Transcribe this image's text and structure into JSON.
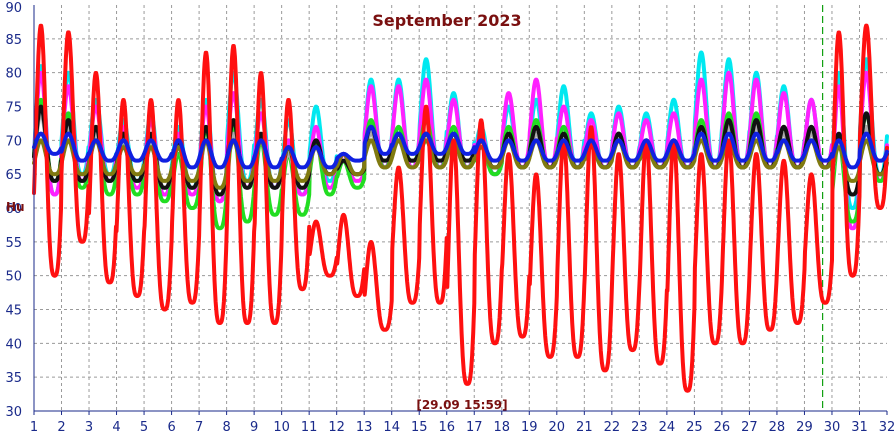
{
  "chart_data": {
    "type": "line",
    "title": "September 2023",
    "ylabel": "Hu",
    "annotation": "[29.09 15:59]",
    "marker_day": 29.66,
    "xlim": [
      1,
      32
    ],
    "ylim": [
      30,
      90
    ],
    "x_ticks": [
      "1",
      "2",
      "3",
      "4",
      "5",
      "6",
      "7",
      "8",
      "9",
      "10",
      "11",
      "12",
      "13",
      "14",
      "15",
      "16",
      "17",
      "18",
      "19",
      "20",
      "21",
      "22",
      "23",
      "24",
      "25",
      "26",
      "27",
      "28",
      "29",
      "30",
      "31",
      "32"
    ],
    "y_ticks": [
      "30",
      "35",
      "40",
      "45",
      "50",
      "55",
      "60",
      "65",
      "70",
      "75",
      "80",
      "85",
      "90"
    ],
    "grid": true,
    "series": [
      {
        "color": "#00e8f0",
        "daily": [
          [
            62,
            81
          ],
          [
            65,
            80
          ],
          [
            65,
            76
          ],
          [
            64,
            73
          ],
          [
            62,
            74
          ],
          [
            63,
            72
          ],
          [
            61,
            76
          ],
          [
            64,
            80
          ],
          [
            63,
            76
          ],
          [
            62,
            73
          ],
          [
            64,
            75
          ],
          [
            65,
            68
          ],
          [
            66,
            79
          ],
          [
            66,
            79
          ],
          [
            66,
            82
          ],
          [
            66,
            77
          ],
          [
            65,
            72
          ],
          [
            66,
            75
          ],
          [
            66,
            76
          ],
          [
            66,
            78
          ],
          [
            66,
            74
          ],
          [
            66,
            75
          ],
          [
            66,
            74
          ],
          [
            66,
            76
          ],
          [
            66,
            83
          ],
          [
            66,
            82
          ],
          [
            66,
            80
          ],
          [
            66,
            78
          ],
          [
            66,
            76
          ],
          [
            60,
            80
          ],
          [
            65,
            82
          ]
        ]
      },
      {
        "color": "#ff20ff",
        "daily": [
          [
            62,
            80
          ],
          [
            64,
            78
          ],
          [
            64,
            75
          ],
          [
            63,
            72
          ],
          [
            62,
            73
          ],
          [
            62,
            71
          ],
          [
            61,
            75
          ],
          [
            63,
            77
          ],
          [
            63,
            74
          ],
          [
            62,
            70
          ],
          [
            63,
            72
          ],
          [
            64,
            68
          ],
          [
            66,
            78
          ],
          [
            66,
            78
          ],
          [
            66,
            79
          ],
          [
            66,
            76
          ],
          [
            65,
            71
          ],
          [
            66,
            77
          ],
          [
            66,
            79
          ],
          [
            66,
            75
          ],
          [
            66,
            73
          ],
          [
            66,
            74
          ],
          [
            66,
            73
          ],
          [
            66,
            74
          ],
          [
            66,
            79
          ],
          [
            66,
            80
          ],
          [
            66,
            79
          ],
          [
            66,
            77
          ],
          [
            66,
            76
          ],
          [
            57,
            78
          ],
          [
            64,
            80
          ]
        ]
      },
      {
        "color": "#22dd22",
        "daily": [
          [
            64,
            76
          ],
          [
            63,
            74
          ],
          [
            62,
            72
          ],
          [
            62,
            70
          ],
          [
            61,
            70
          ],
          [
            60,
            68
          ],
          [
            57,
            72
          ],
          [
            58,
            72
          ],
          [
            59,
            70
          ],
          [
            59,
            68
          ],
          [
            62,
            70
          ],
          [
            63,
            67
          ],
          [
            66,
            73
          ],
          [
            67,
            72
          ],
          [
            66,
            73
          ],
          [
            66,
            72
          ],
          [
            65,
            70
          ],
          [
            66,
            72
          ],
          [
            66,
            73
          ],
          [
            66,
            72
          ],
          [
            66,
            70
          ],
          [
            66,
            71
          ],
          [
            66,
            70
          ],
          [
            66,
            70
          ],
          [
            66,
            73
          ],
          [
            66,
            74
          ],
          [
            66,
            74
          ],
          [
            66,
            72
          ],
          [
            66,
            72
          ],
          [
            58,
            70
          ],
          [
            64,
            74
          ]
        ]
      },
      {
        "color": "#aaaaaa",
        "daily": [
          [
            64,
            74
          ],
          [
            64,
            72
          ],
          [
            64,
            71
          ],
          [
            64,
            70
          ],
          [
            63,
            70
          ],
          [
            63,
            69
          ],
          [
            62,
            70
          ],
          [
            63,
            71
          ],
          [
            63,
            70
          ],
          [
            63,
            68
          ],
          [
            65,
            69
          ],
          [
            65,
            67
          ],
          [
            67,
            71
          ],
          [
            67,
            70
          ],
          [
            67,
            70
          ],
          [
            67,
            70
          ],
          [
            66,
            69
          ],
          [
            66,
            70
          ],
          [
            66,
            71
          ],
          [
            66,
            70
          ],
          [
            66,
            70
          ],
          [
            66,
            70
          ],
          [
            66,
            70
          ],
          [
            66,
            70
          ],
          [
            66,
            71
          ],
          [
            66,
            72
          ],
          [
            66,
            72
          ],
          [
            66,
            71
          ],
          [
            66,
            71
          ],
          [
            62,
            70
          ],
          [
            65,
            72
          ]
        ]
      },
      {
        "color": "#111111",
        "daily": [
          [
            64,
            75
          ],
          [
            64,
            73
          ],
          [
            64,
            72
          ],
          [
            64,
            71
          ],
          [
            63,
            71
          ],
          [
            63,
            70
          ],
          [
            62,
            72
          ],
          [
            63,
            73
          ],
          [
            63,
            71
          ],
          [
            63,
            69
          ],
          [
            65,
            70
          ],
          [
            65,
            67
          ],
          [
            67,
            72
          ],
          [
            67,
            71
          ],
          [
            67,
            71
          ],
          [
            67,
            71
          ],
          [
            66,
            70
          ],
          [
            66,
            71
          ],
          [
            66,
            72
          ],
          [
            66,
            71
          ],
          [
            66,
            70
          ],
          [
            66,
            71
          ],
          [
            66,
            70
          ],
          [
            66,
            70
          ],
          [
            66,
            72
          ],
          [
            66,
            73
          ],
          [
            66,
            73
          ],
          [
            66,
            72
          ],
          [
            66,
            72
          ],
          [
            62,
            71
          ],
          [
            65,
            74
          ]
        ]
      },
      {
        "color": "#807a10",
        "daily": [
          [
            65,
            70
          ],
          [
            65,
            70
          ],
          [
            65,
            70
          ],
          [
            65,
            69
          ],
          [
            64,
            69
          ],
          [
            64,
            69
          ],
          [
            63,
            70
          ],
          [
            64,
            70
          ],
          [
            64,
            70
          ],
          [
            64,
            69
          ],
          [
            65,
            69
          ],
          [
            65,
            68
          ],
          [
            66,
            70
          ],
          [
            66,
            70
          ],
          [
            66,
            70
          ],
          [
            66,
            70
          ],
          [
            66,
            69
          ],
          [
            66,
            70
          ],
          [
            66,
            70
          ],
          [
            66,
            70
          ],
          [
            66,
            69
          ],
          [
            66,
            70
          ],
          [
            66,
            69
          ],
          [
            66,
            69
          ],
          [
            66,
            70
          ],
          [
            66,
            70
          ],
          [
            66,
            70
          ],
          [
            66,
            70
          ],
          [
            66,
            70
          ],
          [
            64,
            69
          ],
          [
            65,
            70
          ]
        ]
      },
      {
        "color": "#ff1010",
        "daily": [
          [
            50,
            87
          ],
          [
            55,
            86
          ],
          [
            49,
            80
          ],
          [
            47,
            76
          ],
          [
            45,
            76
          ],
          [
            46,
            76
          ],
          [
            43,
            83
          ],
          [
            43,
            84
          ],
          [
            43,
            80
          ],
          [
            48,
            76
          ],
          [
            50,
            58
          ],
          [
            47,
            59
          ],
          [
            42,
            55
          ],
          [
            46,
            66
          ],
          [
            46,
            75
          ],
          [
            34,
            70
          ],
          [
            40,
            73
          ],
          [
            41,
            68
          ],
          [
            38,
            65
          ],
          [
            38,
            70
          ],
          [
            36,
            72
          ],
          [
            39,
            68
          ],
          [
            37,
            70
          ],
          [
            33,
            70
          ],
          [
            40,
            68
          ],
          [
            40,
            70
          ],
          [
            42,
            68
          ],
          [
            43,
            67
          ],
          [
            46,
            65
          ],
          [
            50,
            86
          ],
          [
            60,
            87
          ]
        ]
      },
      {
        "color": "#1020e0",
        "daily": [
          [
            68,
            71
          ],
          [
            67,
            71
          ],
          [
            67,
            70
          ],
          [
            67,
            70
          ],
          [
            67,
            70
          ],
          [
            66,
            70
          ],
          [
            66,
            70
          ],
          [
            66,
            70
          ],
          [
            66,
            70
          ],
          [
            66,
            69
          ],
          [
            66,
            69
          ],
          [
            67,
            68
          ],
          [
            68,
            72
          ],
          [
            68,
            71
          ],
          [
            68,
            71
          ],
          [
            68,
            71
          ],
          [
            67,
            70
          ],
          [
            67,
            70
          ],
          [
            67,
            70
          ],
          [
            67,
            70
          ],
          [
            67,
            70
          ],
          [
            67,
            70
          ],
          [
            67,
            70
          ],
          [
            67,
            70
          ],
          [
            67,
            71
          ],
          [
            67,
            71
          ],
          [
            67,
            71
          ],
          [
            67,
            70
          ],
          [
            67,
            70
          ],
          [
            66,
            70
          ],
          [
            67,
            71
          ]
        ]
      }
    ]
  }
}
